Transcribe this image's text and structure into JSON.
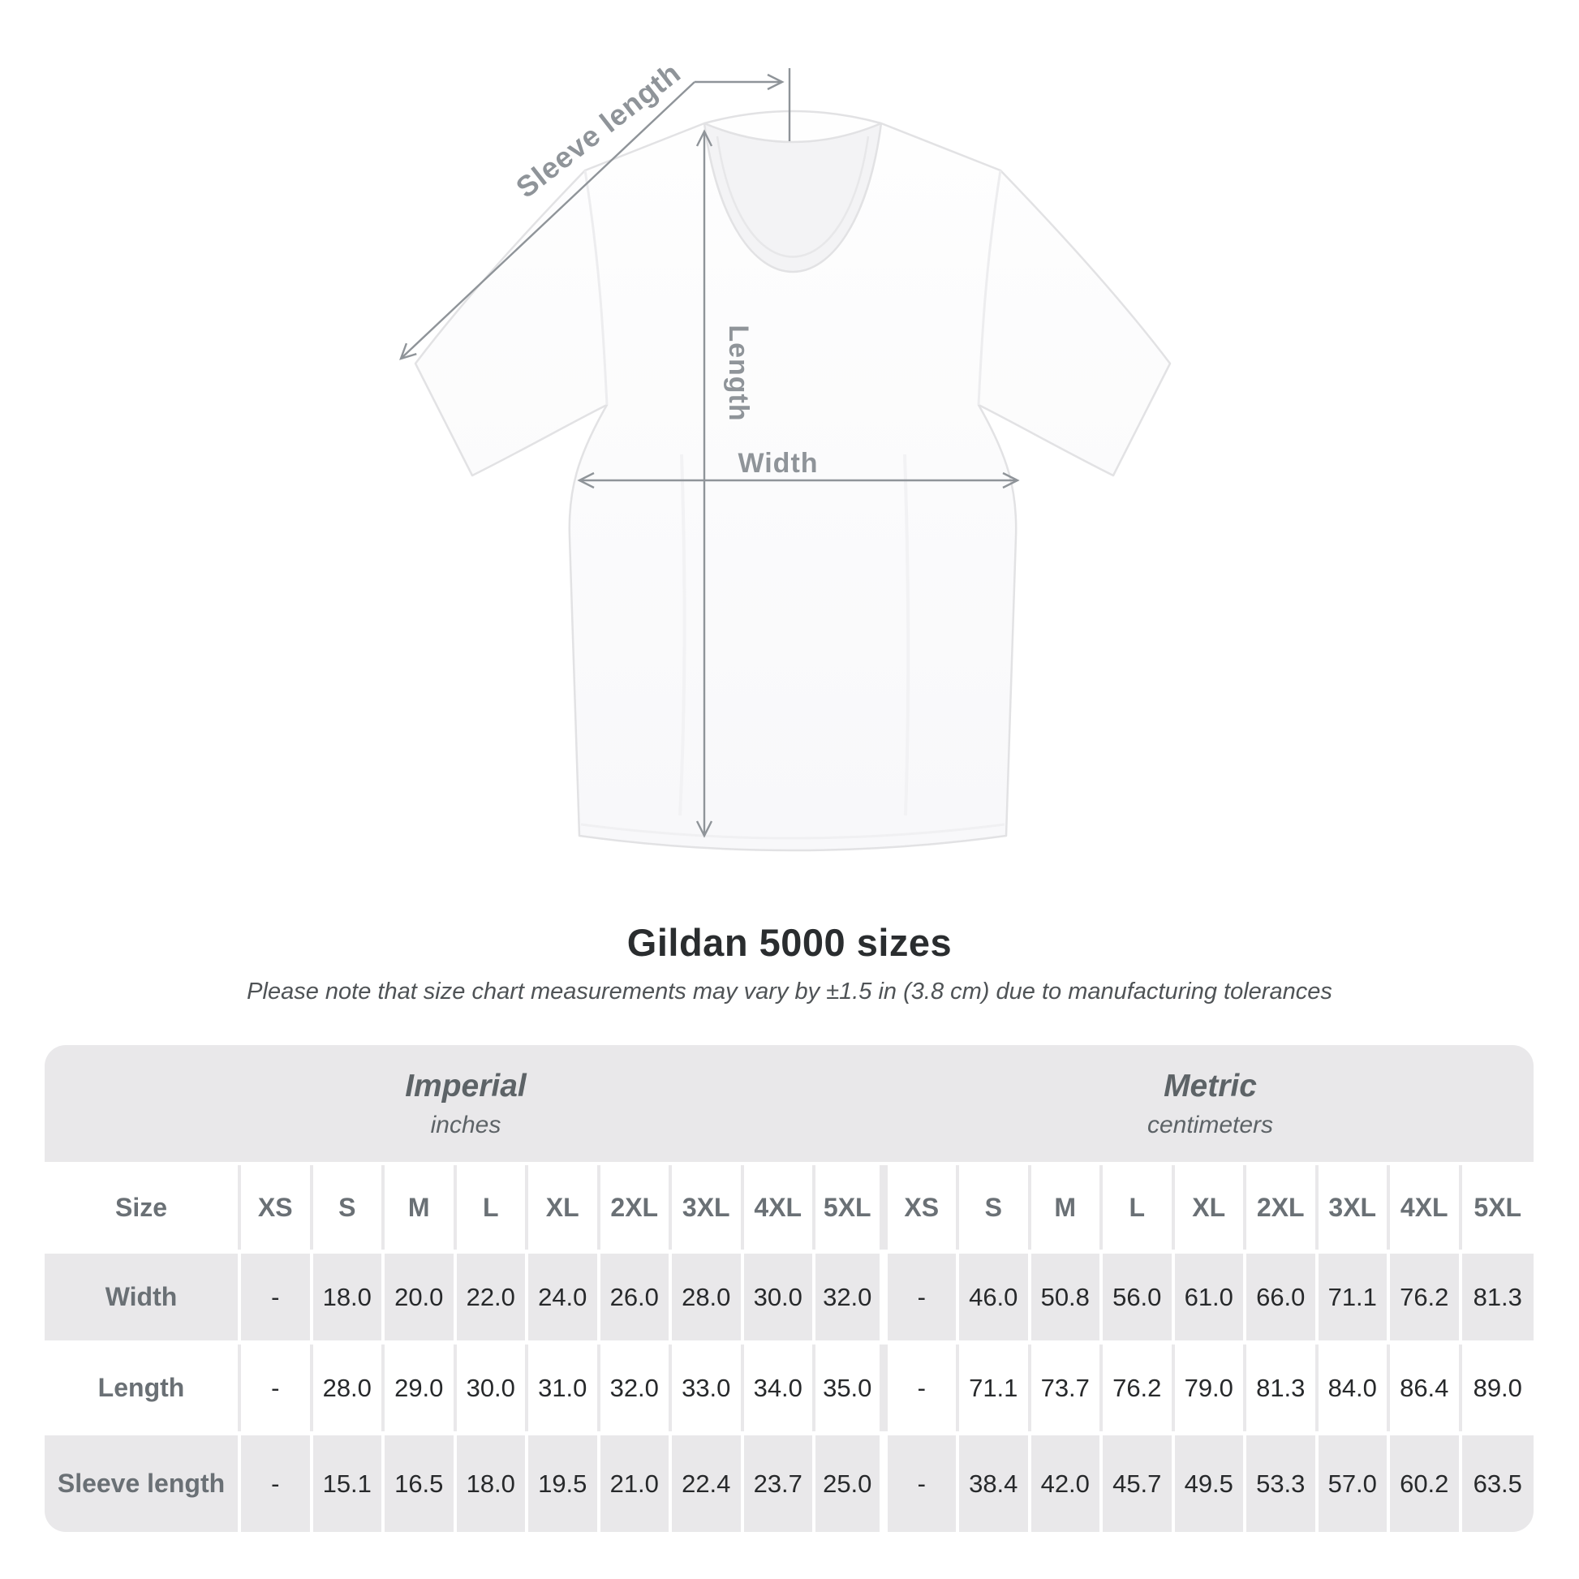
{
  "diagram": {
    "labels": {
      "sleeve_length": "Sleeve length",
      "length": "Length",
      "width": "Width"
    }
  },
  "title": "Gildan 5000 sizes",
  "subtitle": "Please note that size chart measurements may vary by ±1.5 in (3.8 cm) due to manufacturing tolerances",
  "table": {
    "unit_headers": [
      {
        "name": "Imperial",
        "unit": "inches"
      },
      {
        "name": "Metric",
        "unit": "centimeters"
      }
    ],
    "size_header": "Size",
    "sizes": [
      "XS",
      "S",
      "M",
      "L",
      "XL",
      "2XL",
      "3XL",
      "4XL",
      "5XL"
    ],
    "rows": [
      {
        "label": "Width",
        "imperial": [
          "-",
          "18.0",
          "20.0",
          "22.0",
          "24.0",
          "26.0",
          "28.0",
          "30.0",
          "32.0"
        ],
        "metric": [
          "-",
          "46.0",
          "50.8",
          "56.0",
          "61.0",
          "66.0",
          "71.1",
          "76.2",
          "81.3"
        ]
      },
      {
        "label": "Length",
        "imperial": [
          "-",
          "28.0",
          "29.0",
          "30.0",
          "31.0",
          "32.0",
          "33.0",
          "34.0",
          "35.0"
        ],
        "metric": [
          "-",
          "71.1",
          "73.7",
          "76.2",
          "79.0",
          "81.3",
          "84.0",
          "86.4",
          "89.0"
        ]
      },
      {
        "label": "Sleeve length",
        "imperial": [
          "-",
          "15.1",
          "16.5",
          "18.0",
          "19.5",
          "21.0",
          "22.4",
          "23.7",
          "25.0"
        ],
        "metric": [
          "-",
          "38.4",
          "42.0",
          "45.7",
          "49.5",
          "53.3",
          "57.0",
          "60.2",
          "63.5"
        ]
      }
    ]
  },
  "colors": {
    "page_bg": "#ffffff",
    "panel_gray": "#e9e8ea",
    "heading_text": "#2a2d2f",
    "value_text": "#27292b",
    "label_text": "#6a7075",
    "unit_text": "#5d6367",
    "note_text": "#4f5356",
    "annotation_gray": "#8f9499"
  }
}
